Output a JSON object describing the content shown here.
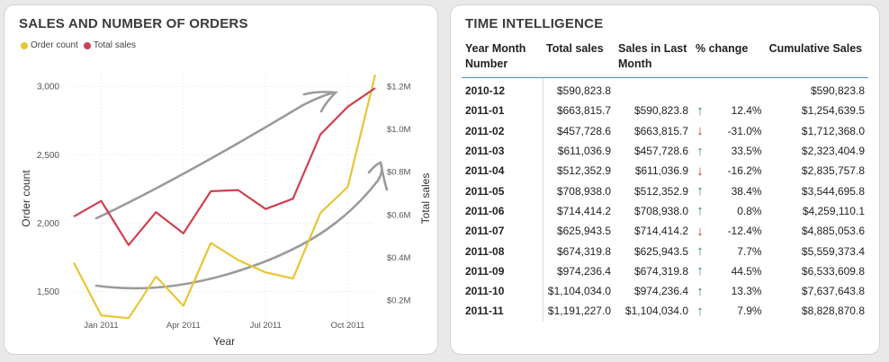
{
  "chart_card": {
    "title": "SALES AND NUMBER OF ORDERS",
    "legend": [
      {
        "label": "Order count",
        "color": "#e8c534"
      },
      {
        "label": "Total sales",
        "color": "#d0404f"
      }
    ]
  },
  "chart_data": {
    "type": "line",
    "title": "SALES AND NUMBER OF ORDERS",
    "xlabel": "Year",
    "ylabel_left": "Order count",
    "ylabel_right": "Total sales",
    "x": [
      "2010-12",
      "2011-01",
      "2011-02",
      "2011-03",
      "2011-04",
      "2011-05",
      "2011-06",
      "2011-07",
      "2011-08",
      "2011-09",
      "2011-10",
      "2011-11"
    ],
    "x_ticks": [
      {
        "x": "2011-01",
        "label": "Jan 2011"
      },
      {
        "x": "2011-04",
        "label": "Apr 2011"
      },
      {
        "x": "2011-07",
        "label": "Jul 2011"
      },
      {
        "x": "2011-10",
        "label": "Oct 2011"
      }
    ],
    "y_left_ticks": [
      {
        "v": 1500,
        "label": "1,500"
      },
      {
        "v": 2000,
        "label": "2,000"
      },
      {
        "v": 2500,
        "label": "2,500"
      },
      {
        "v": 3000,
        "label": "3,000"
      }
    ],
    "y_left_range": [
      1280,
      3080
    ],
    "y_right_ticks": [
      {
        "v": 200000,
        "label": "$0.2M"
      },
      {
        "v": 400000,
        "label": "$0.4M"
      },
      {
        "v": 600000,
        "label": "$0.6M"
      },
      {
        "v": 800000,
        "label": "$0.8M"
      },
      {
        "v": 1000000,
        "label": "$1.0M"
      },
      {
        "v": 1200000,
        "label": "$1.2M"
      }
    ],
    "y_right_range": [
      100000,
      1250000
    ],
    "grid": true,
    "legend_position": "top-left",
    "series": [
      {
        "name": "Order count",
        "axis": "left",
        "color": "#e8c534",
        "values": [
          1710,
          1325,
          1305,
          1610,
          1395,
          1855,
          1730,
          1640,
          1595,
          2075,
          2265,
          3085
        ]
      },
      {
        "name": "Total sales",
        "axis": "right",
        "color": "#d0404f",
        "values": [
          590823.8,
          663815.7,
          457728.6,
          611036.9,
          512352.9,
          708938.0,
          714414.2,
          625943.5,
          674319.8,
          974236.4,
          1104034.0,
          1191227.0
        ]
      }
    ]
  },
  "table_card": {
    "title": "TIME INTELLIGENCE",
    "columns": [
      "Year Month Number",
      "Total sales",
      "Sales in Last Month",
      "% change",
      "Cumulative Sales"
    ],
    "rows": [
      {
        "ym": "2010-12",
        "sales": "$590,823.8",
        "last": "",
        "dir": "",
        "pct": "",
        "cum": "$590,823.8"
      },
      {
        "ym": "2011-01",
        "sales": "$663,815.7",
        "last": "$590,823.8",
        "dir": "up",
        "pct": "12.4%",
        "cum": "$1,254,639.5"
      },
      {
        "ym": "2011-02",
        "sales": "$457,728.6",
        "last": "$663,815.7",
        "dir": "down",
        "pct": "-31.0%",
        "cum": "$1,712,368.0"
      },
      {
        "ym": "2011-03",
        "sales": "$611,036.9",
        "last": "$457,728.6",
        "dir": "up",
        "pct": "33.5%",
        "cum": "$2,323,404.9"
      },
      {
        "ym": "2011-04",
        "sales": "$512,352.9",
        "last": "$611,036.9",
        "dir": "down",
        "pct": "-16.2%",
        "cum": "$2,835,757.8"
      },
      {
        "ym": "2011-05",
        "sales": "$708,938.0",
        "last": "$512,352.9",
        "dir": "up",
        "pct": "38.4%",
        "cum": "$3,544,695.8"
      },
      {
        "ym": "2011-06",
        "sales": "$714,414.2",
        "last": "$708,938.0",
        "dir": "up",
        "pct": "0.8%",
        "cum": "$4,259,110.1"
      },
      {
        "ym": "2011-07",
        "sales": "$625,943.5",
        "last": "$714,414.2",
        "dir": "down",
        "pct": "-12.4%",
        "cum": "$4,885,053.6"
      },
      {
        "ym": "2011-08",
        "sales": "$674,319.8",
        "last": "$625,943.5",
        "dir": "up",
        "pct": "7.7%",
        "cum": "$5,559,373.4"
      },
      {
        "ym": "2011-09",
        "sales": "$974,236.4",
        "last": "$674,319.8",
        "dir": "up",
        "pct": "44.5%",
        "cum": "$6,533,609.8"
      },
      {
        "ym": "2011-10",
        "sales": "$1,104,034.0",
        "last": "$974,236.4",
        "dir": "up",
        "pct": "13.3%",
        "cum": "$7,637,643.8"
      },
      {
        "ym": "2011-11",
        "sales": "$1,191,227.0",
        "last": "$1,104,034.0",
        "dir": "up",
        "pct": "7.9%",
        "cum": "$8,828,870.8"
      }
    ]
  }
}
